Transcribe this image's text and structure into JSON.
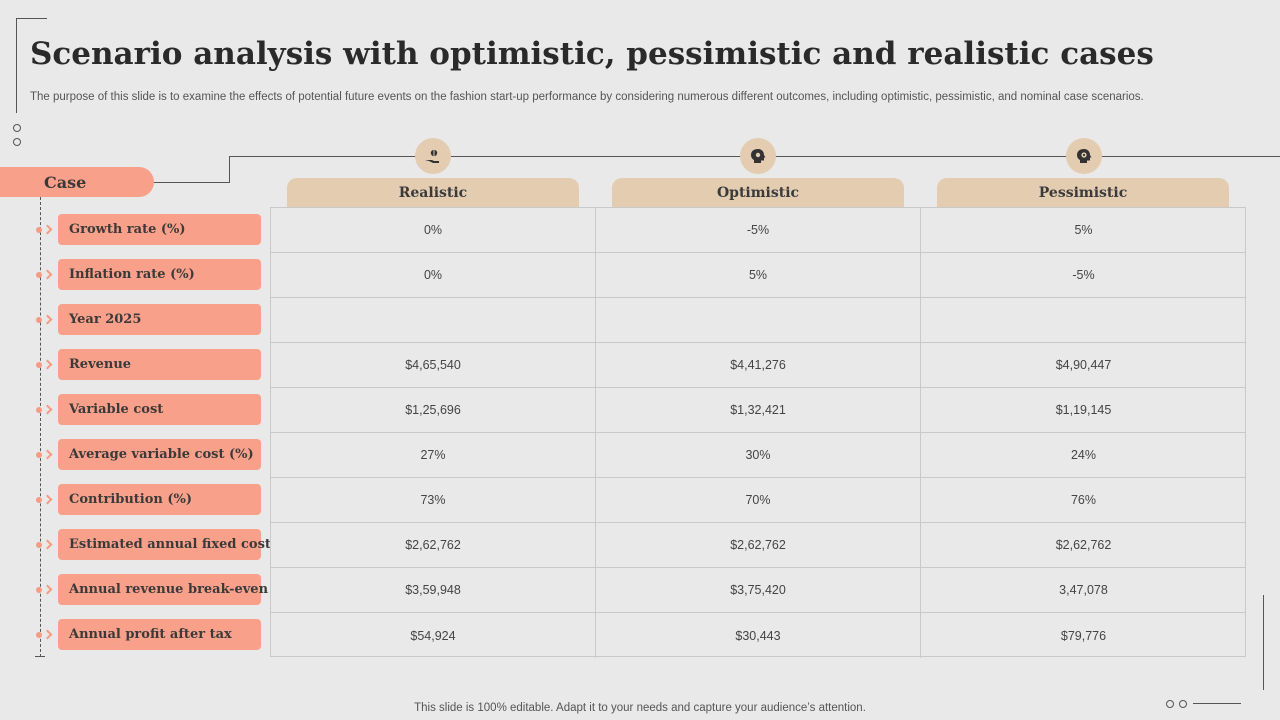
{
  "title": "Scenario analysis with optimistic, pessimistic and realistic cases",
  "subtitle": "The purpose of this slide is to examine the effects of potential future events on the fashion start-up performance by considering numerous different outcomes, including optimistic, pessimistic, and nominal case scenarios.",
  "case_label": "Case",
  "columns": [
    {
      "label": "Realistic",
      "icon": "hand-money-icon"
    },
    {
      "label": "Optimistic",
      "icon": "head-gear-icon"
    },
    {
      "label": "Pessimistic",
      "icon": "head-target-icon"
    }
  ],
  "rows": [
    {
      "label": "Growth rate (%)",
      "values": [
        "0%",
        "-5%",
        "5%"
      ]
    },
    {
      "label": "Inflation rate (%)",
      "values": [
        "0%",
        "5%",
        "-5%"
      ]
    },
    {
      "label": "Year 2025",
      "values": [
        "",
        "",
        ""
      ]
    },
    {
      "label": "Revenue",
      "values": [
        "$4,65,540",
        "$4,41,276",
        "$4,90,447"
      ]
    },
    {
      "label": "Variable cost",
      "values": [
        "$1,25,696",
        "$1,32,421",
        "$1,19,145"
      ]
    },
    {
      "label": "Average variable cost (%)",
      "values": [
        "27%",
        "30%",
        "24%"
      ]
    },
    {
      "label": "Contribution (%)",
      "values": [
        "73%",
        "70%",
        "76%"
      ]
    },
    {
      "label": "Estimated annual fixed cost",
      "values": [
        "$2,62,762",
        "$2,62,762",
        "$2,62,762"
      ]
    },
    {
      "label": "Annual revenue break-even",
      "values": [
        "$3,59,948",
        "$3,75,420",
        "3,47,078"
      ]
    },
    {
      "label": "Annual profit after tax",
      "values": [
        "$54,924",
        "$30,443",
        "$79,776"
      ]
    }
  ],
  "footer": "This slide is 100% editable. Adapt it to your needs and capture your audience’s attention.",
  "colors": {
    "accent": "#f9a08a",
    "header": "#e3ccb0",
    "background": "#e9e9e9"
  }
}
